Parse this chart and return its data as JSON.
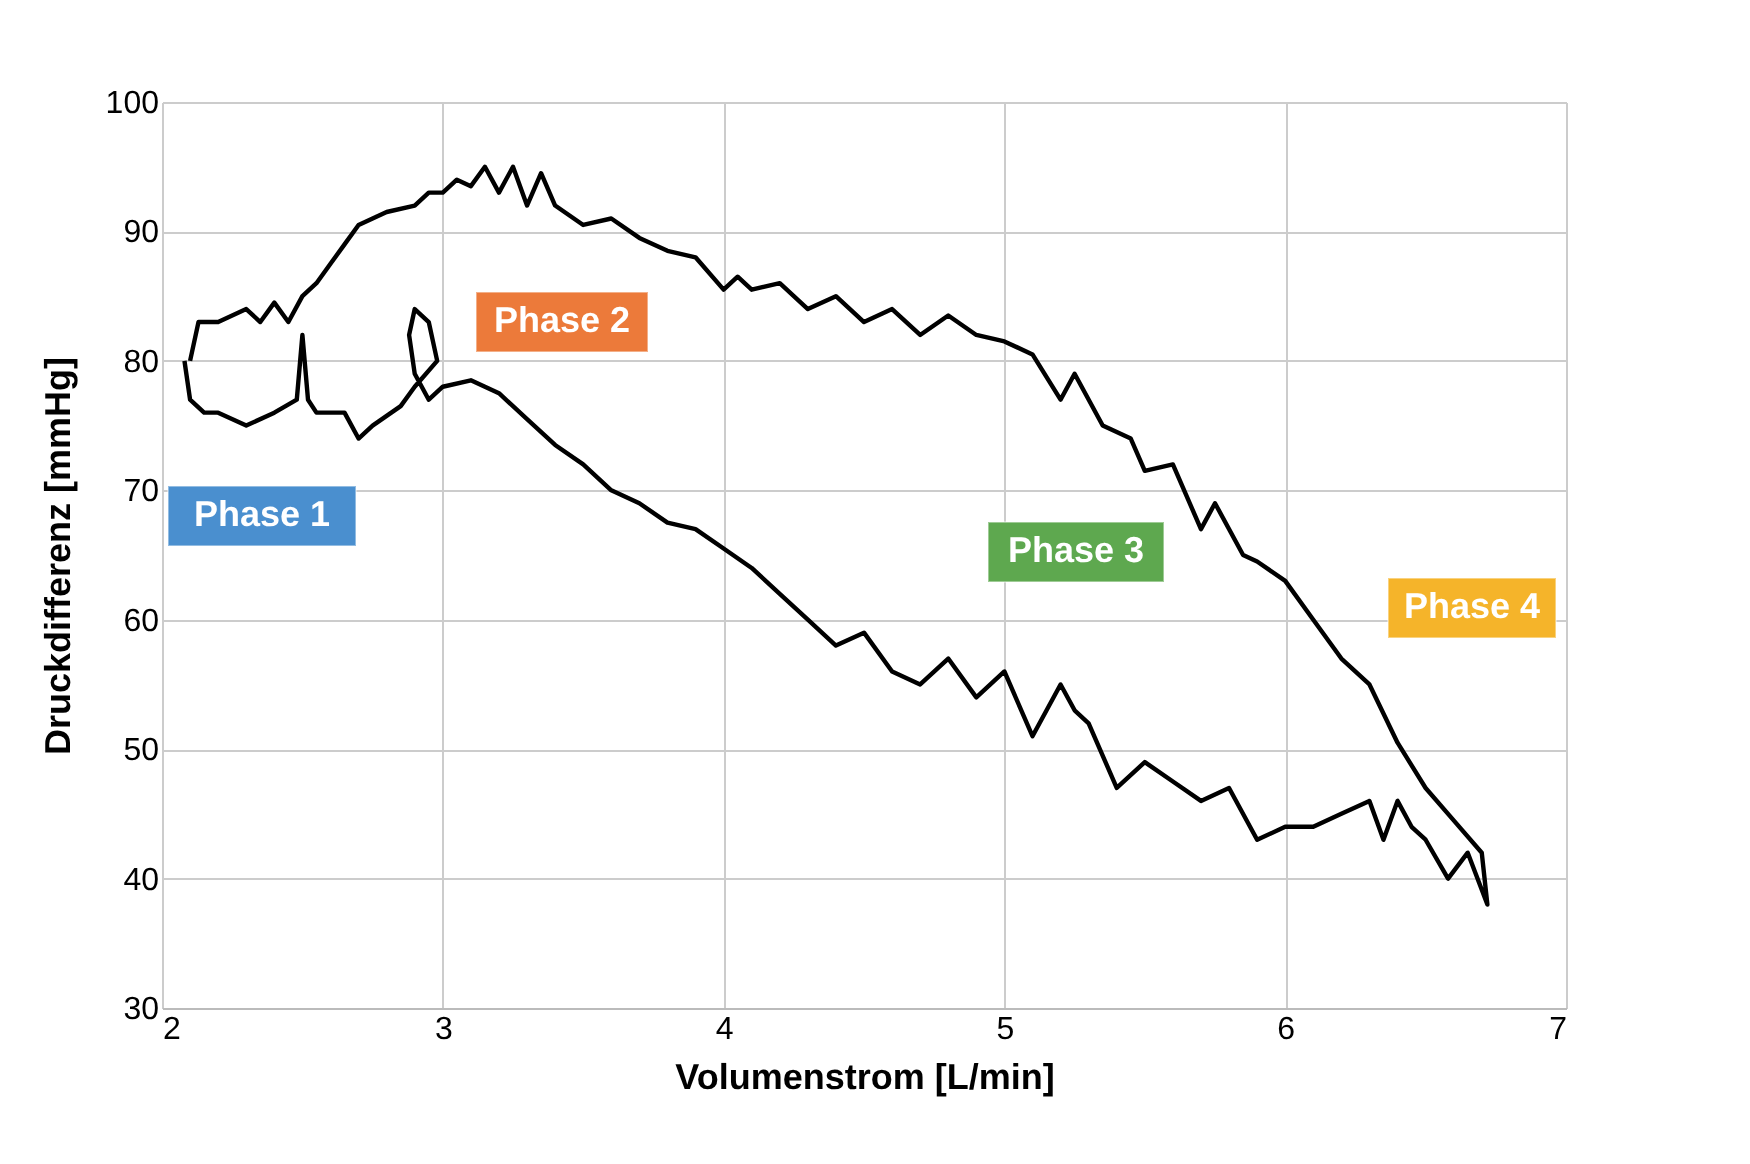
{
  "chart_data": {
    "type": "line",
    "xlabel": "Volumenstrom  [L/min]",
    "ylabel": "Druckdifferenz [mmHg]",
    "x": [
      2.1,
      2.13,
      2.2,
      2.3,
      2.35,
      2.4,
      2.45,
      2.5,
      2.55,
      2.6,
      2.65,
      2.7,
      2.75,
      2.8,
      2.9,
      2.95,
      3.0,
      3.05,
      3.1,
      3.15,
      3.2,
      3.25,
      3.3,
      3.35,
      3.4,
      3.5,
      3.6,
      3.7,
      3.8,
      3.9,
      4.0,
      4.05,
      4.1,
      4.2,
      4.3,
      4.4,
      4.5,
      4.6,
      4.7,
      4.8,
      4.9,
      5.0,
      5.1,
      5.2,
      5.25,
      5.35,
      5.45,
      5.5,
      5.6,
      5.7,
      5.75,
      5.85,
      5.9,
      6.0,
      6.1,
      6.2,
      6.3,
      6.4,
      6.5,
      6.6,
      6.7,
      6.72,
      6.65,
      6.58,
      6.5,
      6.45,
      6.4,
      6.35,
      6.3,
      6.2,
      6.1,
      6.0,
      5.9,
      5.8,
      5.7,
      5.6,
      5.5,
      5.4,
      5.3,
      5.25,
      5.2,
      5.1,
      5.0,
      4.9,
      4.8,
      4.7,
      4.6,
      4.5,
      4.4,
      4.3,
      4.2,
      4.1,
      4.0,
      3.9,
      3.8,
      3.7,
      3.6,
      3.5,
      3.4,
      3.3,
      3.2,
      3.1,
      3.0,
      2.95,
      2.9,
      2.88,
      2.9,
      2.95,
      2.98,
      2.9,
      2.85,
      2.75,
      2.7,
      2.65,
      2.55,
      2.52,
      2.5,
      2.48,
      2.4,
      2.3,
      2.2,
      2.15,
      2.1,
      2.08
    ],
    "values": [
      80,
      83,
      83,
      84,
      83,
      84.5,
      83,
      85,
      86,
      87.5,
      89,
      90.5,
      91,
      91.5,
      92,
      93,
      93,
      94,
      93.5,
      95,
      93,
      95,
      92,
      94.5,
      92,
      90.5,
      91,
      89.5,
      88.5,
      88,
      85.5,
      86.5,
      85.5,
      86,
      84,
      85,
      83,
      84,
      82,
      83.5,
      82,
      81.5,
      80.5,
      77,
      79,
      75,
      74,
      71.5,
      72,
      67,
      69,
      65,
      64.5,
      63,
      60,
      57,
      55,
      50.5,
      47,
      44.5,
      42,
      38,
      42,
      40,
      43,
      44,
      46,
      43,
      46,
      45,
      44,
      44,
      43,
      47,
      46,
      47.5,
      49,
      47,
      52,
      53,
      55,
      51,
      56,
      54,
      57,
      55,
      56,
      59,
      58,
      60,
      62,
      64,
      65.5,
      67,
      67.5,
      69,
      70,
      72,
      73.5,
      75.5,
      77.5,
      78.5,
      78,
      77,
      79,
      82,
      84,
      83,
      80,
      78,
      76.5,
      75,
      74,
      76,
      76,
      77,
      82,
      77,
      76,
      75,
      76,
      76,
      77,
      80
    ],
    "color": "#000000",
    "annotations": [
      "Phase 1",
      "Phase 2",
      "Phase 3",
      "Phase 4"
    ],
    "xlim": [
      2,
      7
    ],
    "ylim": [
      30,
      100
    ],
    "xticks": [
      2,
      3,
      4,
      5,
      6,
      7
    ],
    "yticks": [
      30,
      40,
      50,
      60,
      70,
      80,
      90,
      100
    ],
    "grid": true
  }
}
